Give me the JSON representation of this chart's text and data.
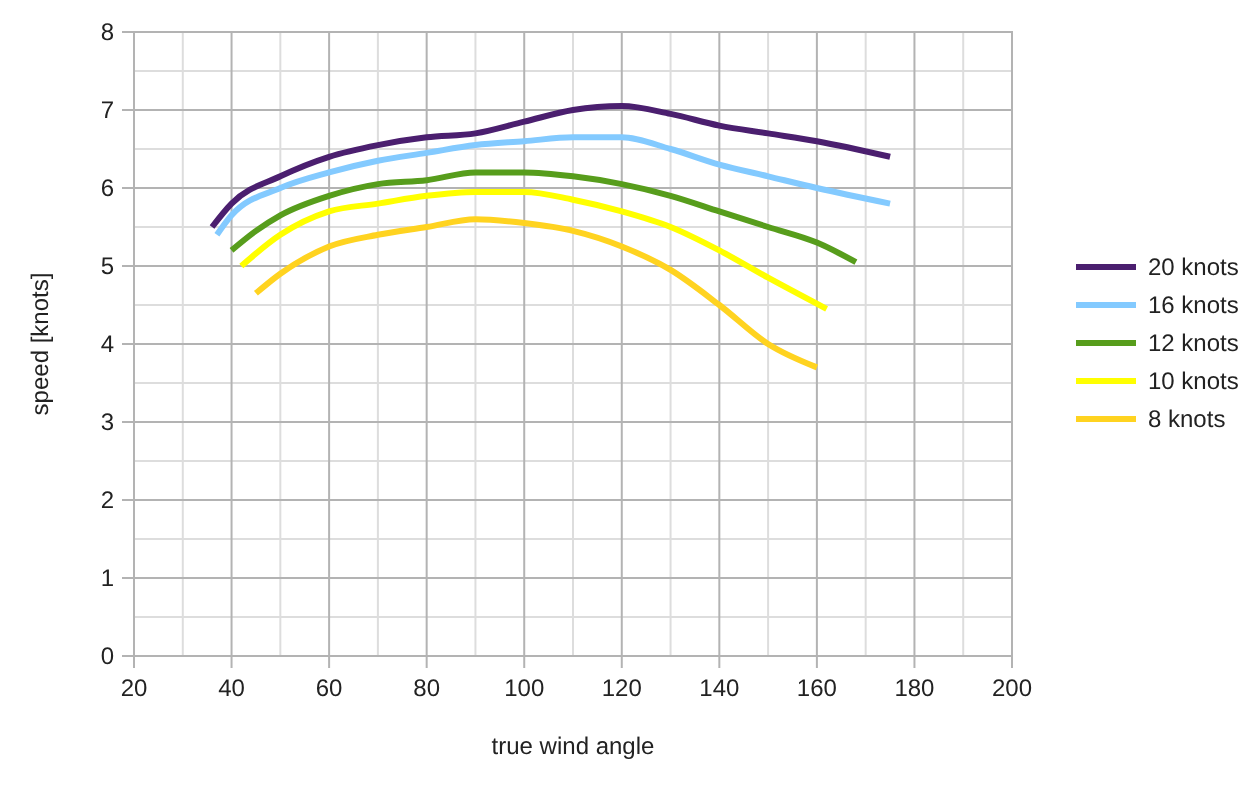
{
  "chart_data": {
    "type": "line",
    "xlabel": "true wind angle",
    "ylabel": "speed [knots]",
    "xlim": [
      20,
      200
    ],
    "xticks": [
      20,
      40,
      60,
      80,
      100,
      120,
      140,
      160,
      180,
      200
    ],
    "ylim": [
      0,
      8
    ],
    "yticks": [
      0,
      1,
      2,
      3,
      4,
      5,
      6,
      7,
      8
    ],
    "grid": true,
    "legend": "right",
    "marker": "none",
    "line_style": "solid",
    "series": [
      {
        "name": "20 knots",
        "color": "#4b1f6f",
        "x": [
          36,
          40,
          50,
          60,
          70,
          80,
          90,
          100,
          110,
          120,
          130,
          140,
          150,
          160,
          175
        ],
        "values": [
          5.5,
          5.8,
          6.15,
          6.4,
          6.55,
          6.65,
          6.7,
          6.85,
          7.0,
          7.05,
          6.95,
          6.8,
          6.7,
          6.6,
          6.4
        ]
      },
      {
        "name": "16 knots",
        "color": "#83caff",
        "x": [
          37,
          40,
          50,
          60,
          70,
          80,
          90,
          100,
          110,
          120,
          130,
          140,
          150,
          160,
          175
        ],
        "values": [
          5.4,
          5.65,
          6.0,
          6.2,
          6.35,
          6.45,
          6.55,
          6.6,
          6.65,
          6.65,
          6.5,
          6.3,
          6.15,
          6.0,
          5.8
        ]
      },
      {
        "name": "12 knots",
        "color": "#579d1c",
        "x": [
          40,
          45,
          50,
          60,
          70,
          80,
          90,
          100,
          110,
          120,
          130,
          140,
          150,
          160,
          168
        ],
        "values": [
          5.2,
          5.45,
          5.65,
          5.9,
          6.05,
          6.1,
          6.2,
          6.2,
          6.15,
          6.05,
          5.9,
          5.7,
          5.5,
          5.3,
          5.05
        ]
      },
      {
        "name": "10 knots",
        "color": "#ffff00",
        "x": [
          42,
          50,
          60,
          70,
          80,
          90,
          100,
          110,
          120,
          130,
          140,
          150,
          162
        ],
        "values": [
          5.0,
          5.4,
          5.7,
          5.8,
          5.9,
          5.95,
          5.95,
          5.85,
          5.7,
          5.5,
          5.2,
          4.85,
          4.45
        ]
      },
      {
        "name": "8 knots",
        "color": "#ffd320",
        "x": [
          45,
          50,
          60,
          70,
          80,
          90,
          100,
          110,
          120,
          130,
          140,
          150,
          160
        ],
        "values": [
          4.65,
          4.9,
          5.25,
          5.4,
          5.5,
          5.6,
          5.55,
          5.45,
          5.25,
          4.95,
          4.5,
          4.0,
          3.7
        ]
      }
    ]
  }
}
